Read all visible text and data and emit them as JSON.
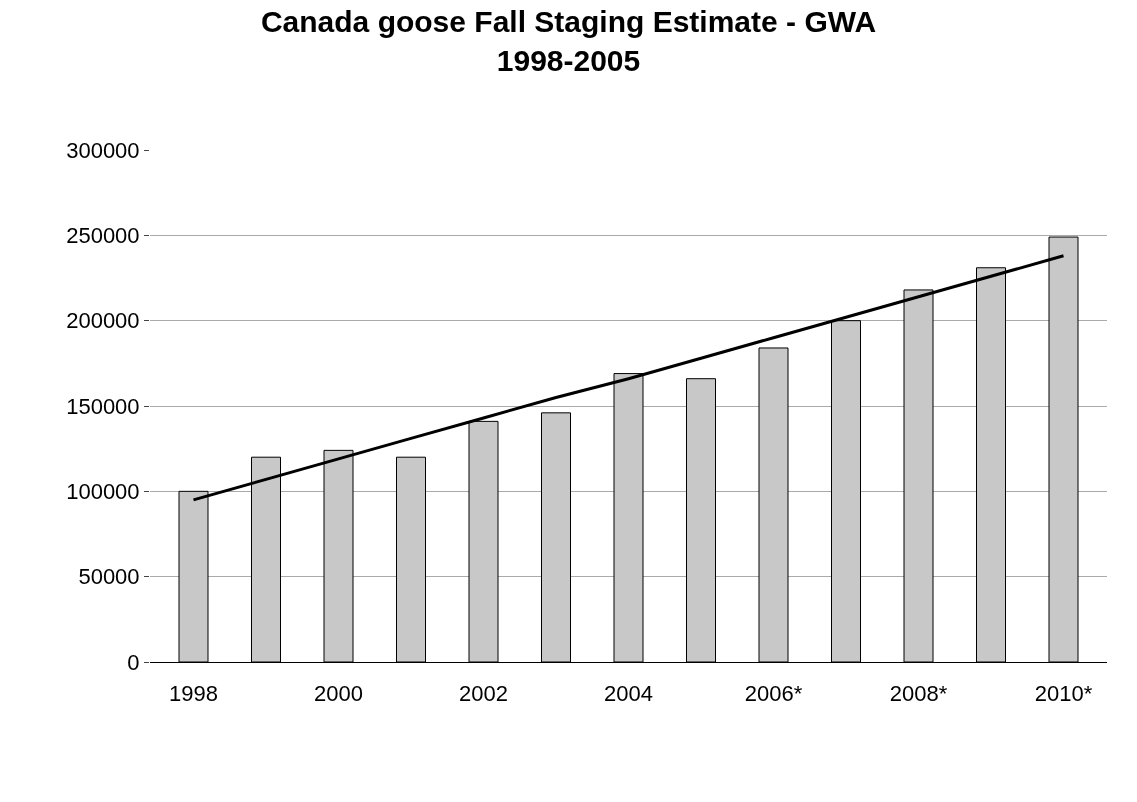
{
  "chart_data": {
    "type": "bar",
    "title": "Canada goose Fall Staging Estimate - GWA\n1998-2005",
    "categories": [
      "1998",
      null,
      "2000",
      null,
      "2002",
      null,
      "2004",
      null,
      "2006*",
      null,
      "2008*",
      null,
      "2010*"
    ],
    "series": [
      {
        "color": "#c8c8c8",
        "values": [
          100000,
          120000,
          124000,
          120000,
          141000,
          146000,
          169000,
          166000,
          184000,
          200000,
          218000,
          231000,
          249000
        ]
      },
      {
        "type": "line",
        "color": "#000000",
        "values": [
          95000,
          107000,
          119000,
          131000,
          143000,
          155000,
          166000,
          178000,
          190000,
          202000,
          214000,
          226000,
          238000
        ]
      }
    ],
    "ylim": [
      0,
      300000
    ],
    "yticks": [
      0,
      50000,
      100000,
      150000,
      200000,
      250000,
      300000
    ],
    "grid": "y",
    "legend": false
  }
}
